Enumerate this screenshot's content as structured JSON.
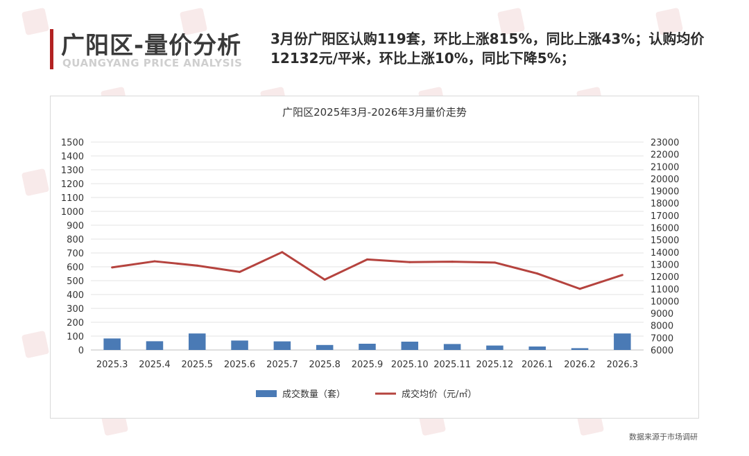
{
  "header": {
    "title": "广阳区-量价分析",
    "subtitle": "QUANGYANG PRICE ANALYSIS",
    "summary": "3月份广阳区认购119套，环比上涨815%，同比上涨43%；认购均价12132元/平米，环比上涨10%，同比下降5%；"
  },
  "source": "数据来源于市场调研",
  "colors": {
    "accent": "#b22222",
    "bar": "#4a7ab5",
    "line": "#b5433e"
  },
  "chart_data": {
    "type": "bar",
    "title": "广阳区2025年3月-2026年3月量价走势",
    "categories": [
      "2025.3",
      "2025.4",
      "2025.5",
      "2025.6",
      "2025.7",
      "2025.8",
      "2025.9",
      "2025.10",
      "2025.11",
      "2025.12",
      "2026.1",
      "2026.2",
      "2026.3"
    ],
    "series": [
      {
        "name": "成交数量（套）",
        "type": "bar",
        "axis": "left",
        "values": [
          83,
          63,
          119,
          68,
          62,
          36,
          45,
          60,
          43,
          32,
          25,
          13,
          119
        ]
      },
      {
        "name": "成交均价（元/㎡）",
        "type": "line",
        "axis": "right",
        "values": [
          12750,
          13250,
          12900,
          12380,
          14000,
          11750,
          13400,
          13180,
          13220,
          13150,
          12250,
          11000,
          12132
        ]
      }
    ],
    "y_left": {
      "min": 0,
      "max": 1500,
      "step": 100
    },
    "y_right": {
      "min": 6000,
      "max": 23000,
      "step": 1000
    },
    "grid": true,
    "legend": "bottom"
  }
}
